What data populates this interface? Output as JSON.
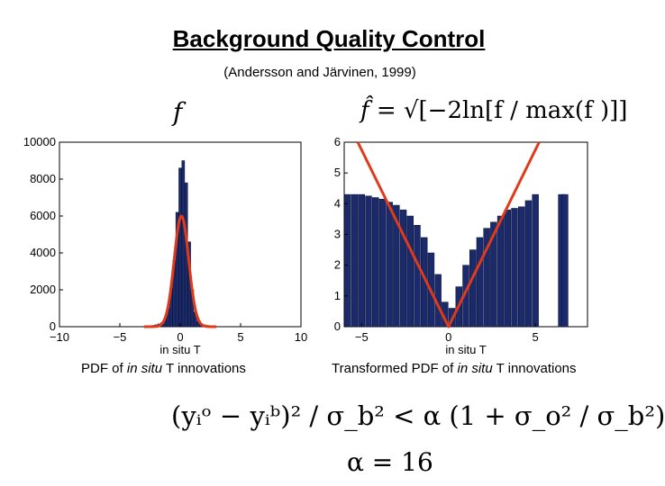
{
  "title": "Background Quality Control",
  "subtitle": "(Andersson and Järvinen, 1999)",
  "left_formula": "f",
  "right_formula": {
    "lhs": "f̂",
    "eq": " = ",
    "rhs": "√[−2ln[f / max(f )]]"
  },
  "captions": {
    "left": {
      "prefix": "PDF of ",
      "em": "in situ",
      "suffix": " T innovations"
    },
    "right": {
      "prefix": "Transformed PDF of ",
      "em": "in situ",
      "suffix": " T innovations"
    }
  },
  "main_equation": "(yᵢᵒ − yᵢᵇ)² / σ_b² < α (1 + σ_o² / σ_b²)",
  "alpha_equation": "α = 16",
  "colors": {
    "bars": "#1a2a6b",
    "fit": "#e03a1a"
  },
  "chart_data": [
    {
      "type": "bar",
      "xlabel": "in situ T",
      "xlim": [
        -10,
        10
      ],
      "ylim": [
        0,
        10000
      ],
      "xticks": [
        -10,
        -5,
        0,
        5,
        10
      ],
      "yticks": [
        0,
        2000,
        4000,
        6000,
        8000,
        10000
      ],
      "bars": [
        {
          "x": -2.5,
          "y": 50
        },
        {
          "x": -2.25,
          "y": 70
        },
        {
          "x": -2.0,
          "y": 100
        },
        {
          "x": -1.75,
          "y": 150
        },
        {
          "x": -1.5,
          "y": 220
        },
        {
          "x": -1.25,
          "y": 450
        },
        {
          "x": -1.0,
          "y": 1000
        },
        {
          "x": -0.75,
          "y": 2100
        },
        {
          "x": -0.5,
          "y": 3600
        },
        {
          "x": -0.25,
          "y": 6200
        },
        {
          "x": 0.0,
          "y": 8600
        },
        {
          "x": 0.25,
          "y": 9000
        },
        {
          "x": 0.5,
          "y": 7800
        },
        {
          "x": 0.75,
          "y": 4600
        },
        {
          "x": 1.0,
          "y": 2000
        },
        {
          "x": 1.25,
          "y": 800
        },
        {
          "x": 1.5,
          "y": 300
        },
        {
          "x": 1.75,
          "y": 150
        },
        {
          "x": 2.0,
          "y": 100
        },
        {
          "x": 2.25,
          "y": 70
        },
        {
          "x": 2.5,
          "y": 50
        }
      ],
      "fit_curve": {
        "type": "gaussian",
        "peak": 6000,
        "center": 0.1,
        "sigma": 0.6
      }
    },
    {
      "type": "bar",
      "xlabel": "in situ T",
      "xlim": [
        -6,
        8
      ],
      "ylim": [
        0,
        6
      ],
      "xticks": [
        -5,
        0,
        5
      ],
      "yticks": [
        0,
        1,
        2,
        3,
        4,
        5,
        6
      ],
      "bars": [
        {
          "x": -5.8,
          "y": 4.3
        },
        {
          "x": -5.4,
          "y": 4.3
        },
        {
          "x": -5.0,
          "y": 4.3
        },
        {
          "x": -4.6,
          "y": 4.25
        },
        {
          "x": -4.2,
          "y": 4.2
        },
        {
          "x": -3.8,
          "y": 4.15
        },
        {
          "x": -3.4,
          "y": 4.05
        },
        {
          "x": -3.0,
          "y": 3.95
        },
        {
          "x": -2.6,
          "y": 3.8
        },
        {
          "x": -2.2,
          "y": 3.6
        },
        {
          "x": -1.8,
          "y": 3.3
        },
        {
          "x": -1.4,
          "y": 2.9
        },
        {
          "x": -1.0,
          "y": 2.4
        },
        {
          "x": -0.6,
          "y": 1.7
        },
        {
          "x": -0.2,
          "y": 0.8
        },
        {
          "x": 0.2,
          "y": 0.6
        },
        {
          "x": 0.6,
          "y": 1.3
        },
        {
          "x": 1.0,
          "y": 2.0
        },
        {
          "x": 1.4,
          "y": 2.5
        },
        {
          "x": 1.8,
          "y": 2.9
        },
        {
          "x": 2.2,
          "y": 3.2
        },
        {
          "x": 2.6,
          "y": 3.4
        },
        {
          "x": 3.0,
          "y": 3.6
        },
        {
          "x": 3.4,
          "y": 3.8
        },
        {
          "x": 3.8,
          "y": 3.85
        },
        {
          "x": 4.2,
          "y": 3.9
        },
        {
          "x": 4.6,
          "y": 4.1
        },
        {
          "x": 5.0,
          "y": 4.3
        },
        {
          "x": 6.5,
          "y": 4.3
        },
        {
          "x": 6.7,
          "y": 4.3
        }
      ],
      "fit_curve": {
        "type": "abs_linear",
        "vertex_x": 0,
        "vertex_y": 0,
        "slope": 1.15
      }
    }
  ]
}
